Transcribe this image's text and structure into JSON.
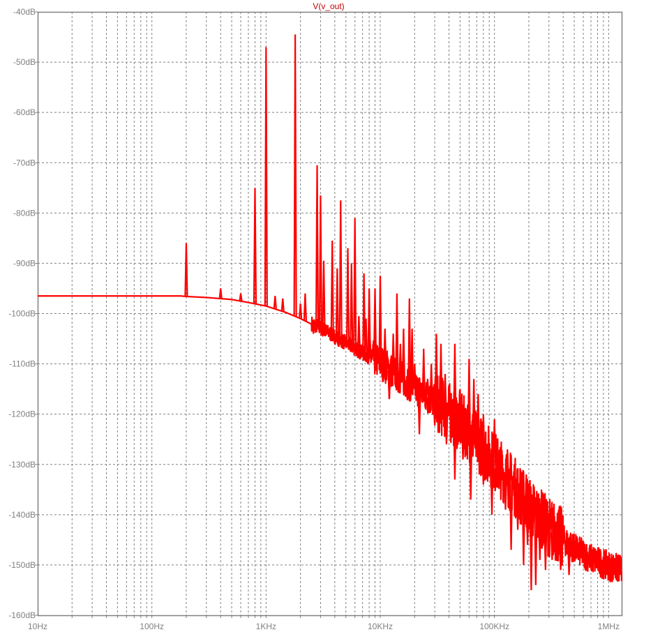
{
  "chart_data": {
    "type": "line",
    "title": "V(v_out)",
    "xlabel": "",
    "ylabel": "",
    "x_scale": "log",
    "xlim": [
      10,
      1300000
    ],
    "ylim": [
      -160,
      -40
    ],
    "grid": true,
    "x_ticks": [
      {
        "value": 10,
        "label": "10Hz"
      },
      {
        "value": 100,
        "label": "100Hz"
      },
      {
        "value": 1000,
        "label": "1KHz"
      },
      {
        "value": 10000,
        "label": "10KHz"
      },
      {
        "value": 100000,
        "label": "100KHz"
      },
      {
        "value": 1000000,
        "label": "1MHz"
      }
    ],
    "y_ticks": [
      {
        "value": -40,
        "label": "-40dB"
      },
      {
        "value": -50,
        "label": "-50dB"
      },
      {
        "value": -60,
        "label": "-60dB"
      },
      {
        "value": -70,
        "label": "-70dB"
      },
      {
        "value": -80,
        "label": "-80dB"
      },
      {
        "value": -90,
        "label": "-90dB"
      },
      {
        "value": -100,
        "label": "-100dB"
      },
      {
        "value": -110,
        "label": "-110dB"
      },
      {
        "value": -120,
        "label": "-120dB"
      },
      {
        "value": -130,
        "label": "-130dB"
      },
      {
        "value": -140,
        "label": "-140dB"
      },
      {
        "value": -150,
        "label": "-150dB"
      },
      {
        "value": -160,
        "label": "-160dB"
      }
    ],
    "series": [
      {
        "name": "V(v_out)",
        "color": "#ff0000",
        "floor": [
          [
            10,
            -96.5
          ],
          [
            100,
            -96.5
          ],
          [
            180,
            -96.5
          ],
          [
            200,
            -96.6
          ],
          [
            300,
            -96.8
          ],
          [
            500,
            -97.2
          ],
          [
            700,
            -97.8
          ],
          [
            1000,
            -98.5
          ],
          [
            1500,
            -99.8
          ],
          [
            2000,
            -101
          ],
          [
            3000,
            -103
          ],
          [
            5000,
            -106
          ],
          [
            7000,
            -108
          ],
          [
            10000,
            -110
          ],
          [
            15000,
            -113
          ],
          [
            20000,
            -115
          ],
          [
            30000,
            -118
          ],
          [
            50000,
            -122
          ],
          [
            70000,
            -126
          ],
          [
            100000,
            -130
          ],
          [
            150000,
            -135
          ],
          [
            200000,
            -139
          ],
          [
            300000,
            -143
          ],
          [
            500000,
            -147
          ],
          [
            700000,
            -149
          ],
          [
            1000000,
            -150.5
          ],
          [
            1300000,
            -151.2
          ]
        ],
        "peaks": [
          [
            200,
            -86
          ],
          [
            400,
            -95
          ],
          [
            600,
            -96
          ],
          [
            800,
            -75
          ],
          [
            1000,
            -47
          ],
          [
            1200,
            -96.5
          ],
          [
            1400,
            -97
          ],
          [
            1800,
            -44.5
          ],
          [
            2000,
            -98
          ],
          [
            2200,
            -96
          ],
          [
            2600,
            -104
          ],
          [
            2800,
            -70.5
          ],
          [
            3000,
            -76.5
          ],
          [
            3200,
            -89.5
          ],
          [
            3400,
            -104
          ],
          [
            3800,
            -85.5
          ],
          [
            4200,
            -91
          ],
          [
            4500,
            -77.5
          ],
          [
            5200,
            -87
          ],
          [
            5600,
            -90
          ],
          [
            6000,
            -81
          ],
          [
            6500,
            -100.5
          ],
          [
            7200,
            -92
          ],
          [
            7500,
            -101
          ],
          [
            8000,
            -95
          ],
          [
            8600,
            -107
          ],
          [
            9000,
            -95
          ],
          [
            10000,
            -92.5
          ],
          [
            11000,
            -103
          ],
          [
            11500,
            -108
          ],
          [
            12000,
            -117
          ],
          [
            13000,
            -104
          ],
          [
            14000,
            -96
          ],
          [
            15000,
            -106
          ],
          [
            16000,
            -103
          ],
          [
            18000,
            -97
          ],
          [
            19000,
            -103
          ],
          [
            20000,
            -110
          ],
          [
            22000,
            -118
          ],
          [
            24000,
            -107
          ],
          [
            26000,
            -113
          ],
          [
            28000,
            -110
          ],
          [
            31000,
            -104
          ],
          [
            34000,
            -106
          ],
          [
            37000,
            -112
          ],
          [
            40000,
            -117
          ],
          [
            45000,
            -106
          ],
          [
            50000,
            -115
          ],
          [
            55000,
            -119
          ],
          [
            60000,
            -109
          ],
          [
            66000,
            -113
          ],
          [
            72000,
            -116
          ],
          [
            80000,
            -120
          ],
          [
            90000,
            -126
          ],
          [
            100000,
            -121
          ],
          [
            115000,
            -128
          ],
          [
            130000,
            -127
          ],
          [
            150000,
            -131
          ],
          [
            170000,
            -134
          ],
          [
            190000,
            -132
          ],
          [
            210000,
            -136
          ],
          [
            240000,
            -138
          ],
          [
            270000,
            -139
          ],
          [
            310000,
            -141
          ],
          [
            350000,
            -143
          ],
          [
            400000,
            -145
          ]
        ],
        "dips": [
          [
            3300,
            -104.5
          ],
          [
            4000,
            -106
          ],
          [
            12000,
            -117
          ],
          [
            16000,
            -113
          ],
          [
            22000,
            -124
          ],
          [
            26000,
            -118
          ],
          [
            30000,
            -122
          ],
          [
            38000,
            -126
          ],
          [
            45000,
            -133
          ],
          [
            53000,
            -129
          ],
          [
            62000,
            -137
          ],
          [
            70000,
            -128
          ],
          [
            80000,
            -134
          ],
          [
            95000,
            -140
          ],
          [
            110000,
            -134
          ],
          [
            125000,
            -139
          ],
          [
            140000,
            -147
          ],
          [
            160000,
            -143
          ],
          [
            180000,
            -150
          ],
          [
            195000,
            -146
          ],
          [
            210000,
            -155
          ],
          [
            230000,
            -154
          ],
          [
            250000,
            -149
          ],
          [
            280000,
            -151
          ],
          [
            320000,
            -149
          ],
          [
            380000,
            -151
          ],
          [
            450000,
            -152
          ]
        ]
      }
    ]
  }
}
